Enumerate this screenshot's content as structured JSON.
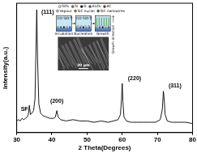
{
  "chart_data": {
    "type": "line",
    "x_label": "2 Theta(Degrees)",
    "y_label": "Intensity(a.u.)",
    "x": [
      30,
      30.5,
      31,
      31.5,
      32,
      32.5,
      33,
      33.3,
      33.6,
      33.9,
      34.3,
      34.8,
      35.2,
      35.45,
      35.7,
      35.95,
      36.3,
      36.8,
      37.5,
      38.5,
      39.5,
      40.5,
      41,
      41.4,
      41.8,
      42.5,
      44,
      46,
      48,
      50,
      52,
      54,
      56,
      57.5,
      58.8,
      59.5,
      59.8,
      60.0,
      60.2,
      60.5,
      61.2,
      62.5,
      64,
      66,
      68,
      69.5,
      70.8,
      71.4,
      71.7,
      71.9,
      72.2,
      72.8,
      74,
      76,
      78,
      80
    ],
    "values": [
      9,
      10,
      9,
      11,
      10,
      11,
      12,
      14,
      21,
      14,
      15,
      17,
      26,
      60,
      95,
      55,
      22,
      15,
      13,
      12,
      11,
      11,
      12,
      17,
      12,
      10,
      9,
      10,
      9,
      9,
      8,
      9,
      8,
      9,
      10,
      14,
      26,
      38,
      24,
      12,
      9,
      8,
      8,
      8,
      8,
      8,
      10,
      18,
      32,
      27,
      14,
      9,
      8,
      8,
      8,
      7
    ],
    "color": "#000000",
    "xlim": [
      30,
      80
    ],
    "xticks": [
      30,
      40,
      50,
      60,
      70,
      80
    ],
    "ylim": [
      0,
      100
    ],
    "tick_labels": "x",
    "grid": false,
    "annotations": [
      {
        "text": "SF",
        "x": 32.2,
        "y": 18
      },
      {
        "text": "(111)",
        "x": 38.8,
        "y": 93
      },
      {
        "text": "(200)",
        "x": 41.4,
        "y": 24
      },
      {
        "text": "(220)",
        "x": 63.5,
        "y": 42
      },
      {
        "text": "(311)",
        "x": 75,
        "y": 36
      }
    ]
  },
  "inset": {
    "legend": [
      [
        {
          "name": "SiO₂",
          "color": "#ffffff"
        },
        {
          "name": "Si",
          "color": "#8c8c8c"
        },
        {
          "name": "G",
          "color": "#000000"
        },
        {
          "name": "Al₂O₃",
          "color": "#5b7fbf"
        },
        {
          "name": "AC",
          "color": "#7a4a2a"
        }
      ],
      [
        {
          "name": "Vapour",
          "color": "#c9e6f5"
        },
        {
          "name": "SiC nuclei",
          "color": "#e08a1e"
        },
        {
          "name": "SiC nanowires",
          "color": "#3a9a3a"
        }
      ]
    ],
    "stages": [
      {
        "name": "Incubation",
        "gas": "CO SiO"
      },
      {
        "name": "Nucleation",
        "gas": "CO SiO"
      },
      {
        "name": "Growth"
      }
    ],
    "growth_label": "Growth direction",
    "scale_bar": "20 μm"
  }
}
